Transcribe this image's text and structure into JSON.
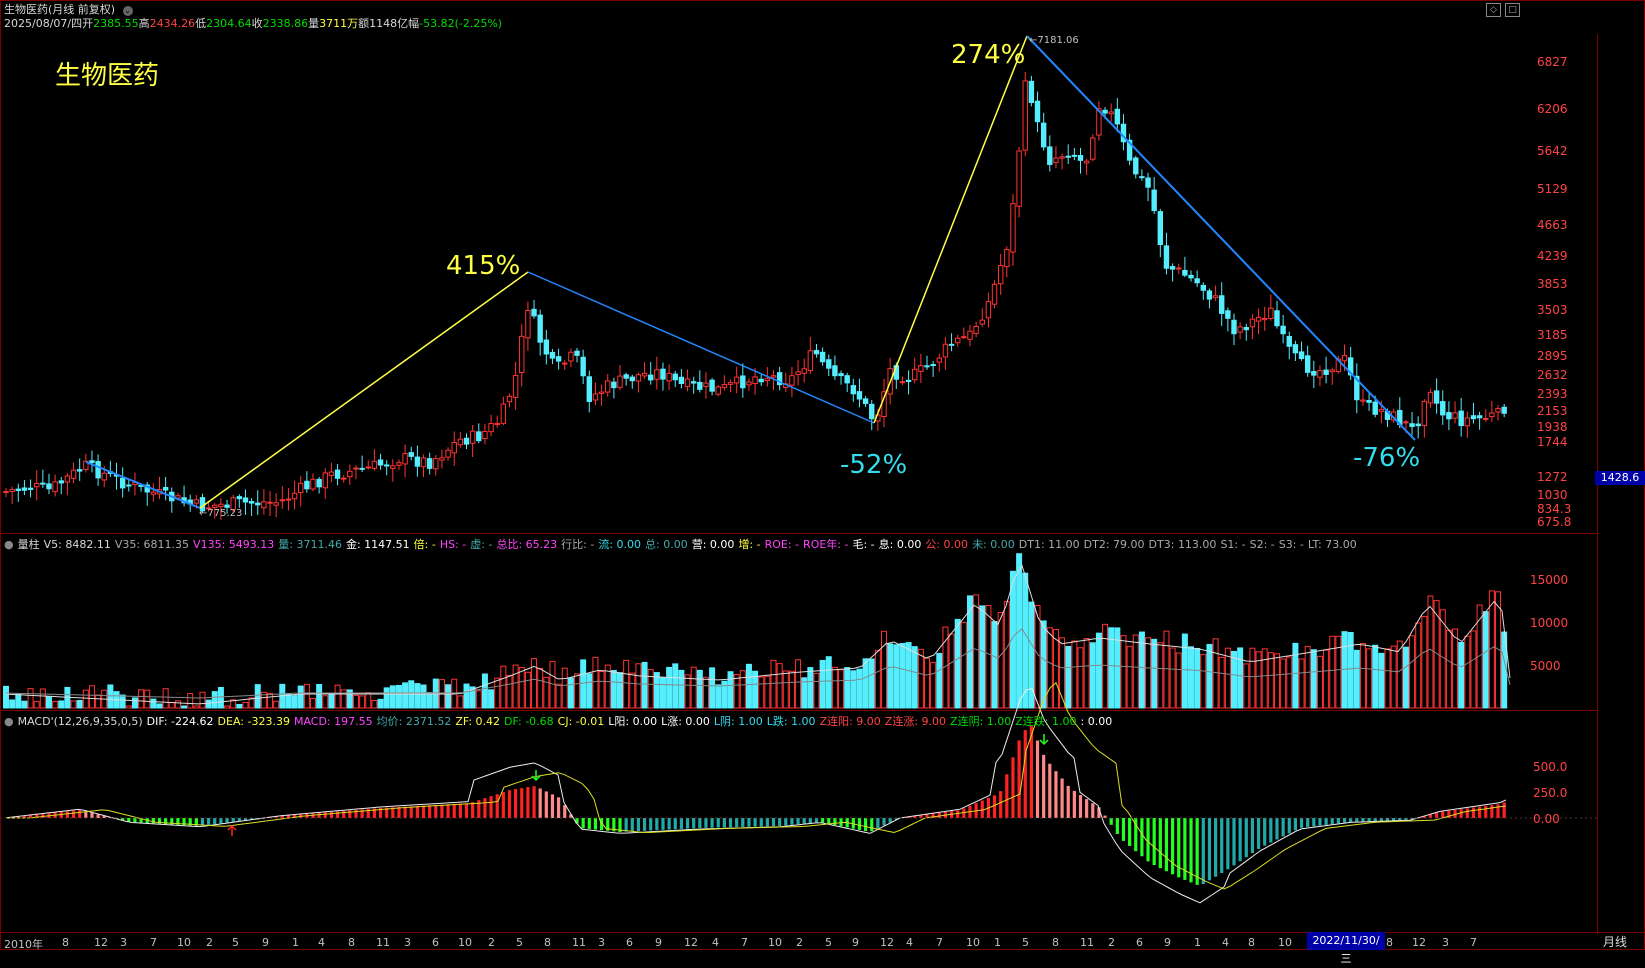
{
  "header": {
    "title": "生物医药(月线 前复权)",
    "caret": "⌄",
    "ohlc": [
      {
        "label": "2025/08/07/四",
        "color": "#d8d8d8"
      },
      {
        "label": "开",
        "color": "#d8d8d8"
      },
      {
        "label": "2385.55",
        "color": "#00dd00"
      },
      {
        "label": "高",
        "color": "#d8d8d8"
      },
      {
        "label": "2434.26",
        "color": "#ff4444"
      },
      {
        "label": "低",
        "color": "#d8d8d8"
      },
      {
        "label": "2304.64",
        "color": "#00dd00"
      },
      {
        "label": "收",
        "color": "#d8d8d8"
      },
      {
        "label": "2338.86",
        "color": "#00dd00"
      },
      {
        "label": "量",
        "color": "#d8d8d8"
      },
      {
        "label": "3711万",
        "color": "#ffff44"
      },
      {
        "label": "额",
        "color": "#d8d8d8"
      },
      {
        "label": "1148亿",
        "color": "#d8d8d8"
      },
      {
        "label": "幅",
        "color": "#d8d8d8"
      },
      {
        "label": "-53.82(-2.25%)",
        "color": "#00dd00"
      }
    ],
    "window_buttons": [
      "◇",
      "□"
    ]
  },
  "main_chart": {
    "title": "生物医药",
    "annotations": [
      {
        "text": "415%",
        "color": "#ffff44"
      },
      {
        "text": "274%",
        "color": "#ffff44"
      },
      {
        "text": "-52%",
        "color": "#33ddee"
      },
      {
        "text": "-76%",
        "color": "#33ddee"
      }
    ],
    "high_label": "7181.06",
    "low_label": "775.23",
    "cursor_value": "1428.6",
    "y_axis": [
      "6827",
      "6206",
      "5642",
      "5129",
      "4663",
      "4239",
      "3853",
      "3503",
      "3185",
      "2895",
      "2632",
      "2393",
      "2153",
      "1938",
      "1744",
      "1272",
      "1030",
      "834.3",
      "675.8"
    ]
  },
  "volume_panel": {
    "info": [
      {
        "label": "量柱",
        "color": "#d8d8d8"
      },
      {
        "label": "V5: 8482.11",
        "color": "#d8d8d8"
      },
      {
        "label": "V35: 6811.35",
        "color": "#aaaaaa"
      },
      {
        "label": "V135: 5493.13",
        "color": "#ff44ff"
      },
      {
        "label": "量: 3711.46",
        "color": "#44aaaa"
      },
      {
        "label": "金: 1147.51",
        "color": "#ffffff"
      },
      {
        "label": "倍: -",
        "color": "#ffff44"
      },
      {
        "label": "HS: -",
        "color": "#ff44ff"
      },
      {
        "label": "虚: -",
        "color": "#44aaaa"
      },
      {
        "label": "总比: 65.23",
        "color": "#ff44ff"
      },
      {
        "label": "行比: -",
        "color": "#aaaaaa"
      },
      {
        "label": "流: 0.00",
        "color": "#33ddee"
      },
      {
        "label": "总: 0.00",
        "color": "#44aaaa"
      },
      {
        "label": "营: 0.00",
        "color": "#ffffff"
      },
      {
        "label": "增: -",
        "color": "#ffff44"
      },
      {
        "label": "ROE: -",
        "color": "#ff44ff"
      },
      {
        "label": "ROE年: -",
        "color": "#ff44ff"
      },
      {
        "label": "毛: -",
        "color": "#ffffff"
      },
      {
        "label": "息: 0.00",
        "color": "#ffffff"
      },
      {
        "label": "公: 0.00",
        "color": "#ff4444"
      },
      {
        "label": "未: 0.00",
        "color": "#44aaaa"
      },
      {
        "label": "DT1: 11.00",
        "color": "#aaaaaa"
      },
      {
        "label": "DT2: 79.00",
        "color": "#aaaaaa"
      },
      {
        "label": "DT3: 113.00",
        "color": "#aaaaaa"
      },
      {
        "label": "S1: -",
        "color": "#aaaaaa"
      },
      {
        "label": "S2: -",
        "color": "#aaaaaa"
      },
      {
        "label": "S3: -",
        "color": "#aaaaaa"
      },
      {
        "label": "LT: 73.00",
        "color": "#aaaaaa"
      }
    ],
    "y_axis": [
      "15000",
      "10000",
      "5000"
    ]
  },
  "macd_panel": {
    "info": [
      {
        "label": "MACD'(12,26,9,35,0,5)",
        "color": "#d8d8d8"
      },
      {
        "label": "DIF: -224.62",
        "color": "#ffffff"
      },
      {
        "label": "DEA: -323.39",
        "color": "#ffff44"
      },
      {
        "label": "MACD: 197.55",
        "color": "#ff44ff"
      },
      {
        "label": "均价: 2371.52",
        "color": "#44aaaa"
      },
      {
        "label": "ZF: 0.42",
        "color": "#ffff44"
      },
      {
        "label": "DF: -0.68",
        "color": "#00dd00"
      },
      {
        "label": "CJ: -0.01",
        "color": "#ffff44"
      },
      {
        "label": "L阳: 0.00",
        "color": "#ffffff"
      },
      {
        "label": "L涨: 0.00",
        "color": "#ffffff"
      },
      {
        "label": "L阴: 1.00",
        "color": "#33ddee"
      },
      {
        "label": "L跌: 1.00",
        "color": "#33ddee"
      },
      {
        "label": "Z连阳: 9.00",
        "color": "#ff4444"
      },
      {
        "label": "Z连涨: 9.00",
        "color": "#ff4444"
      },
      {
        "label": "Z连阴: 1.00",
        "color": "#00dd00"
      },
      {
        "label": "Z连跌: 1.00",
        "color": "#00dd00"
      },
      {
        "label": ": 0.00",
        "color": "#ffffff"
      }
    ],
    "y_axis": [
      "500.0",
      "250.0",
      "0.00"
    ]
  },
  "x_axis": {
    "labels": [
      "2010年",
      "8",
      "12",
      "3",
      "7",
      "10",
      "2",
      "5",
      "9",
      "1",
      "4",
      "8",
      "11",
      "3",
      "6",
      "10",
      "2",
      "5",
      "8",
      "11",
      "3",
      "6",
      "9",
      "12",
      "4",
      "7",
      "10",
      "2",
      "5",
      "9",
      "12",
      "4",
      "7",
      "10",
      "1",
      "5",
      "8",
      "11",
      "2",
      "6",
      "9",
      "1",
      "4",
      "8",
      "10",
      "1",
      "5",
      "8",
      "12",
      "3",
      "7"
    ],
    "cursor_date": "2022/11/30/三",
    "period_button": "月线"
  },
  "colors": {
    "up": "#ff3333",
    "down": "#55eeff",
    "frame": "#7a0000",
    "up_trend": "#ffff44",
    "down_trend": "#2288ff"
  }
}
